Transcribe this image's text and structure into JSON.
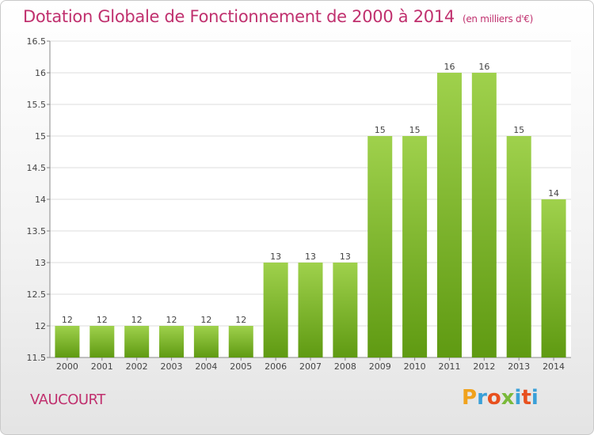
{
  "chart_data": {
    "type": "bar",
    "title": "Dotation Globale de Fonctionnement de 2000 à 2014",
    "subtitle": "(en milliers d'€)",
    "categories": [
      "2000",
      "2001",
      "2002",
      "2003",
      "2004",
      "2005",
      "2006",
      "2007",
      "2008",
      "2009",
      "2010",
      "2011",
      "2012",
      "2013",
      "2014"
    ],
    "values": [
      12,
      12,
      12,
      12,
      12,
      12,
      13,
      13,
      13,
      15,
      15,
      16,
      16,
      15,
      14
    ],
    "data_labels": [
      "12",
      "12",
      "12",
      "12",
      "12",
      "12",
      "13",
      "13",
      "13",
      "15",
      "15",
      "16",
      "16",
      "15",
      "14"
    ],
    "ylim": [
      11.5,
      16.5
    ],
    "yticks": [
      11.5,
      12,
      12.5,
      13,
      13.5,
      14,
      14.5,
      15,
      15.5,
      16,
      16.5
    ],
    "ytick_labels": [
      "11.5",
      "12",
      "12.5",
      "13",
      "13.5",
      "14",
      "14.5",
      "15",
      "15.5",
      "16",
      "16.5"
    ],
    "grid": true,
    "bar_color_top": "#9fd14c",
    "bar_color_bottom": "#5f9a12"
  },
  "commune": "VAUCOURT",
  "logo": {
    "text": [
      "P",
      "r",
      "o",
      "x",
      "i",
      "t",
      "i"
    ],
    "colors": [
      "#f0a21c",
      "#3aa0d8",
      "#e8501e",
      "#7ab93a",
      "#3aa0d8",
      "#e8501e",
      "#3aa0d8"
    ]
  }
}
